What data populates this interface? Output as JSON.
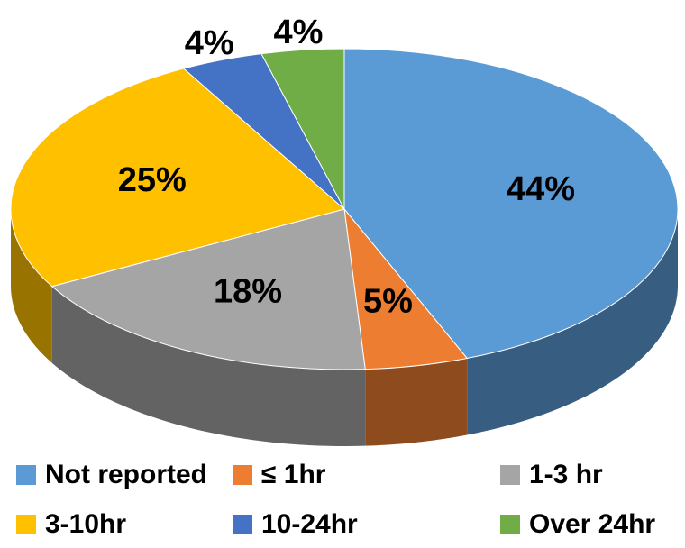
{
  "chart_data": {
    "type": "pie",
    "categories": [
      "Not reported",
      "≤  1hr",
      "1-3 hr",
      "3-10hr",
      "10-24hr",
      "Over 24hr"
    ],
    "values": [
      44,
      5,
      18,
      25,
      4,
      4
    ],
    "value_labels": [
      "44%",
      "5%",
      "18%",
      "25%",
      "4%",
      "4%"
    ],
    "colors": [
      "#5b9bd5",
      "#ed7d31",
      "#a5a5a5",
      "#ffc000",
      "#4472c4",
      "#70ad47"
    ],
    "legend": "bottom"
  }
}
